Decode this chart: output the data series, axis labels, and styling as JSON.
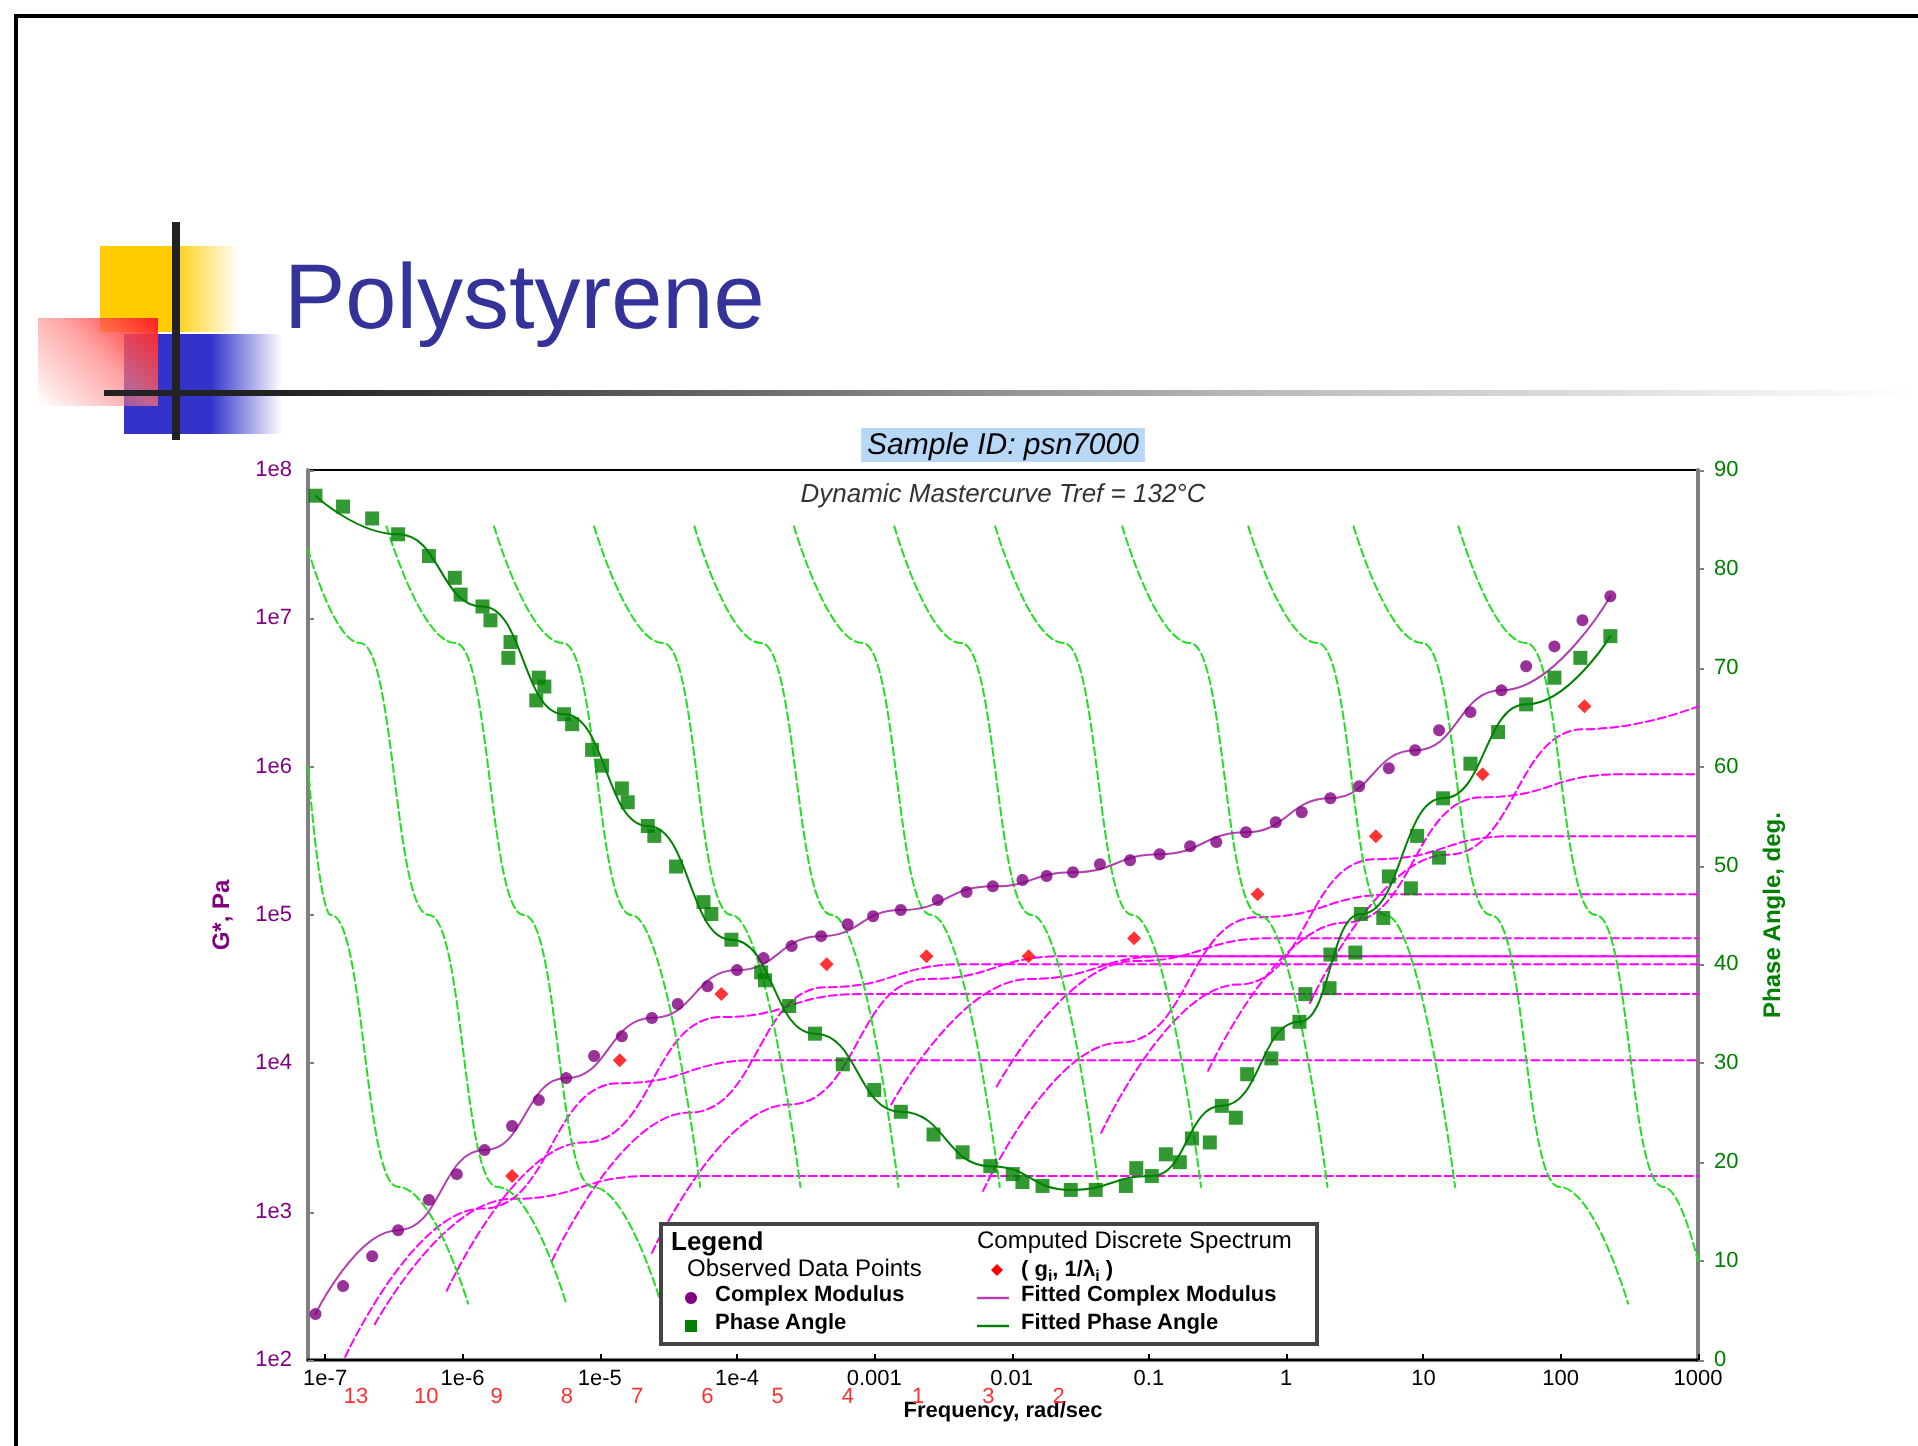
{
  "chart_data": {
    "type": "scatter",
    "title": "Polystyrene",
    "subtitle": "Sample ID: psn7000",
    "xlabel": "Frequency, rad/sec",
    "ylabel": "G*, Pa",
    "y2label": "Phase Angle, deg.",
    "legend_title": "Legend",
    "legend": "bottom",
    "log": "xy",
    "annotations": [
      "Dynamic Mastercurve Tref = 132°C",
      "Observed Data Points",
      "Computed Discrete Spectrum",
      "13",
      "10",
      "9",
      "8",
      "7",
      "6",
      "5",
      "4",
      "1",
      "3",
      "2"
    ],
    "xlim": [
      7.5e-08,
      1000
    ],
    "xticks": [
      {
        "value": 1e-07,
        "label": "1e-7"
      },
      {
        "value": 1e-06,
        "label": "1e-6"
      },
      {
        "value": 1e-05,
        "label": "1e-5"
      },
      {
        "value": 0.0001,
        "label": "1e-4"
      },
      0.001,
      0.01,
      0.1,
      1,
      10,
      100,
      1000
    ],
    "ylim": [
      100,
      100000000
    ],
    "yticks": [
      {
        "value": 100,
        "label": "1e2"
      },
      {
        "value": 1000,
        "label": "1e3"
      },
      {
        "value": 10000,
        "label": "1e4"
      },
      {
        "value": 100000,
        "label": "1e5"
      },
      {
        "value": 1000000,
        "label": "1e6"
      },
      {
        "value": 10000000,
        "label": "1e7"
      },
      {
        "value": 100000000,
        "label": "1e8"
      }
    ],
    "y2lim": [
      0,
      90
    ],
    "y2ticks": [
      0,
      10,
      20,
      30,
      40,
      50,
      60,
      70,
      80,
      90
    ],
    "series": [
      {
        "name": "Complex Modulus",
        "marker": "circle",
        "color": "#800080",
        "x": [
          8.5e-08,
          1.35e-07,
          2.2e-07,
          3.4e-07,
          5.7e-07,
          9.1e-07,
          1.45e-06,
          2.3e-06,
          3.6e-06,
          5.7e-06,
          9.1e-06,
          1.45e-05,
          2.4e-05,
          3.7e-05,
          6.1e-05,
          0.0001,
          0.000156,
          0.00025,
          0.00041,
          0.00064,
          0.00098,
          0.00156,
          0.0029,
          0.0047,
          0.0073,
          0.012,
          0.018,
          0.028,
          0.044,
          0.073,
          0.12,
          0.2,
          0.31,
          0.51,
          0.84,
          1.3,
          2.1,
          3.4,
          5.6,
          8.7,
          13,
          22,
          37,
          56,
          90,
          144,
          230
        ],
        "values": [
          204,
          315,
          500,
          750,
          1200,
          1790,
          2600,
          3780,
          5650,
          7950,
          11200,
          15200,
          20200,
          25100,
          33100,
          42500,
          51200,
          61700,
          72000,
          86700,
          98000,
          108000,
          126000,
          143000,
          156000,
          172000,
          183000,
          194000,
          220000,
          234000,
          257000,
          291000,
          310000,
          361000,
          422000,
          493000,
          612000,
          738000,
          975000,
          1290000,
          1760000,
          2330000,
          3270000,
          4750000,
          6470000,
          9700000,
          14100000
        ]
      },
      {
        "name": "Phase Angle",
        "marker": "square",
        "color": "#008000",
        "axis": "y2",
        "x": [
          8.5e-08,
          1.35e-07,
          2.2e-07,
          3.4e-07,
          5.7e-07,
          8.8e-07,
          9.7e-07,
          1.4e-06,
          1.6e-06,
          2.24e-06,
          2.16e-06,
          3.6e-06,
          3.95e-06,
          3.45e-06,
          5.5e-06,
          6.3e-06,
          8.8e-06,
          1.04e-05,
          1.45e-05,
          1.6e-05,
          2.24e-05,
          2.5e-05,
          3.6e-05,
          5.7e-05,
          6.5e-05,
          9.1e-05,
          0.00015,
          0.00016,
          0.00024,
          0.00037,
          0.00059,
          0.001,
          0.00156,
          0.0027,
          0.0044,
          0.007,
          0.0102,
          0.012,
          0.0168,
          0.027,
          0.041,
          0.068,
          0.081,
          0.105,
          0.133,
          0.168,
          0.206,
          0.278,
          0.34,
          0.43,
          0.52,
          0.78,
          0.87,
          1.25,
          1.38,
          2.07,
          2.1,
          3.19,
          3.5,
          5.1,
          5.6,
          8.1,
          9.0,
          13,
          13.9,
          22,
          35,
          56,
          90,
          139,
          230
        ],
        "values": [
          87.4,
          86.3,
          85.1,
          83.5,
          81.3,
          79.1,
          77.4,
          76.2,
          74.8,
          72.6,
          71.0,
          69.0,
          68.1,
          66.7,
          65.3,
          64.3,
          61.7,
          60.1,
          57.8,
          56.4,
          54.0,
          53.0,
          49.9,
          46.3,
          45.1,
          42.5,
          39.2,
          38.4,
          35.8,
          33.0,
          29.9,
          27.3,
          25.1,
          22.8,
          21.0,
          19.6,
          18.8,
          18.0,
          17.6,
          17.2,
          17.2,
          17.6,
          19.4,
          18.6,
          20.8,
          20.0,
          22.4,
          22.0,
          25.7,
          24.5,
          28.9,
          30.5,
          33.0,
          34.2,
          37.0,
          37.6,
          41.0,
          41.2,
          45.1,
          44.7,
          48.9,
          47.7,
          53.0,
          50.8,
          56.8,
          60.3,
          63.5,
          66.3,
          69.0,
          71.0,
          73.2
        ]
      },
      {
        "name": "( g$_{i}$, 1/λ$_{i}$ )",
        "marker": "diamond",
        "color": "#ff0000",
        "x": [
          2.3e-06,
          1.4e-05,
          7.7e-05,
          0.00045,
          0.0024,
          0.0133,
          0.078,
          0.62,
          4.5,
          27,
          149
        ],
        "values": [
          1740,
          10500,
          29300,
          46600,
          52800,
          52800,
          69800,
          138000,
          340000,
          889000,
          2550000
        ]
      },
      {
        "name": "Fitted Complex Modulus",
        "type": "line",
        "color": "#b040b0",
        "x": [
          8.5e-08,
          3.4e-07,
          1.45e-06,
          5.7e-06,
          2.4e-05,
          0.0001,
          0.00041,
          0.00156,
          0.0073,
          0.028,
          0.12,
          0.51,
          2.1,
          8.7,
          37,
          230
        ],
        "values": [
          204,
          750,
          2600,
          7950,
          20200,
          42500,
          72000,
          108000,
          156000,
          194000,
          257000,
          361000,
          612000,
          1290000,
          3270000,
          14100000
        ]
      },
      {
        "name": "Fitted Phase Angle",
        "type": "line",
        "color": "#008000",
        "axis": "y2",
        "x": [
          8.5e-08,
          3.4e-07,
          1.4e-06,
          5.5e-06,
          2.24e-05,
          9.1e-05,
          0.00037,
          0.00156,
          0.007,
          0.027,
          0.105,
          0.34,
          1.25,
          3.5,
          13.9,
          56,
          230
        ],
        "values": [
          87.4,
          83.5,
          76.2,
          65.3,
          54.0,
          42.5,
          33.0,
          25.1,
          19.6,
          17.2,
          18.6,
          25.7,
          34.2,
          45.1,
          56.8,
          66.3,
          73.2
        ]
      },
      {
        "type": "line",
        "line_style": "dashed",
        "color": "#ff00ff",
        "x": [
          2.3e-07,
          2.3e-06,
          2.3e-05,
          1000
        ],
        "values": [
          174,
          1220,
          1740,
          1740
        ]
      },
      {
        "type": "line",
        "line_style": "dashed",
        "color": "#ff00ff",
        "x": [
          1.4e-07,
          1.4e-06,
          1.4e-05,
          0.00014,
          1000
        ],
        "values": [
          105,
          1050,
          7350,
          10500,
          10500
        ]
      },
      {
        "type": "line",
        "line_style": "dashed",
        "color": "#ff00ff",
        "x": [
          7.7e-07,
          7.7e-06,
          7.7e-05,
          0.00077,
          1000
        ],
        "values": [
          293,
          2930,
          20500,
          29300,
          29300
        ]
      },
      {
        "type": "line",
        "line_style": "dashed",
        "color": "#ff00ff",
        "x": [
          4.5e-06,
          4.5e-05,
          0.00045,
          0.0045,
          1000
        ],
        "values": [
          466,
          4660,
          32600,
          46600,
          46600
        ]
      },
      {
        "type": "line",
        "line_style": "dashed",
        "color": "#ff00ff",
        "x": [
          2.4e-05,
          0.00024,
          0.0024,
          0.024,
          1000
        ],
        "values": [
          528,
          5280,
          37000,
          52800,
          52800
        ]
      },
      {
        "type": "line",
        "line_style": "dashed",
        "color": "#ff00ff",
        "x": [
          0.00133,
          0.0133,
          0.133,
          1000
        ],
        "values": [
          5280,
          37000,
          52800,
          52800
        ]
      },
      {
        "type": "line",
        "line_style": "dashed",
        "color": "#ff00ff",
        "x": [
          0.0078,
          0.078,
          0.78,
          1000
        ],
        "values": [
          6980,
          48900,
          69800,
          69800
        ]
      },
      {
        "type": "line",
        "line_style": "dashed",
        "color": "#ff00ff",
        "x": [
          0.0062,
          0.062,
          0.62,
          6.2,
          1000
        ],
        "values": [
          1380,
          13800,
          96600,
          138000,
          138000
        ]
      },
      {
        "type": "line",
        "line_style": "dashed",
        "color": "#ff00ff",
        "x": [
          0.045,
          0.45,
          4.5,
          45,
          1000
        ],
        "values": [
          3400,
          34000,
          238000,
          340000,
          340000
        ]
      },
      {
        "type": "line",
        "line_style": "dashed",
        "color": "#ff00ff",
        "x": [
          0.27,
          2.7,
          27,
          270,
          1000
        ],
        "values": [
          8890,
          88900,
          622000,
          889000,
          889000
        ]
      },
      {
        "type": "line",
        "line_style": "dashed",
        "color": "#ff00ff",
        "x": [
          1.49,
          14.9,
          149,
          1000
        ],
        "values": [
          25500,
          255000,
          1790000,
          2550000
        ]
      },
      {
        "type": "line",
        "line_style": "dashed",
        "color": "#22dd22",
        "axis": "y2",
        "x": [
          7.5e-08,
          1.1e-07,
          3.4e-07,
          1.1e-06
        ],
        "values": [
          60,
          45,
          17.5,
          5.7
        ]
      },
      {
        "type": "line",
        "line_style": "dashed",
        "color": "#22dd22",
        "axis": "y2",
        "x": [
          7.5e-08,
          1.8e-07,
          5.7e-07,
          1.8e-06,
          5.7e-06
        ],
        "values": [
          82,
          72.5,
          45,
          17.5,
          5.7
        ]
      },
      {
        "type": "line",
        "line_style": "dashed",
        "color": "#22dd22",
        "axis": "y2",
        "x": [
          2.8e-07,
          8.9e-07,
          2.8e-06,
          8.9e-06,
          2.8e-05
        ],
        "values": [
          84.3,
          72.5,
          45,
          17.5,
          5.7
        ]
      },
      {
        "type": "line",
        "line_style": "dashed",
        "color": "#22dd22",
        "axis": "y2",
        "x": [
          1.7e-06,
          5.4e-06,
          1.7e-05,
          5.4e-05
        ],
        "values": [
          84.3,
          72.5,
          45,
          17.5
        ]
      },
      {
        "type": "line",
        "line_style": "dashed",
        "color": "#22dd22",
        "axis": "y2",
        "x": [
          9.1e-06,
          2.9e-05,
          9.1e-05,
          0.00029
        ],
        "values": [
          84.3,
          72.5,
          45,
          17.5
        ]
      },
      {
        "type": "line",
        "line_style": "dashed",
        "color": "#22dd22",
        "axis": "y2",
        "x": [
          4.9e-05,
          0.00015,
          0.00049,
          0.0015
        ],
        "values": [
          84.3,
          72.5,
          45,
          17.5
        ]
      },
      {
        "type": "line",
        "line_style": "dashed",
        "color": "#22dd22",
        "axis": "y2",
        "x": [
          0.00026,
          0.00082,
          0.0026,
          0.0082
        ],
        "values": [
          84.3,
          72.5,
          45,
          17.5
        ]
      },
      {
        "type": "line",
        "line_style": "dashed",
        "color": "#22dd22",
        "axis": "y2",
        "x": [
          0.0014,
          0.0043,
          0.014,
          0.043
        ],
        "values": [
          84.3,
          72.5,
          45,
          17.5
        ]
      },
      {
        "type": "line",
        "line_style": "dashed",
        "color": "#22dd22",
        "axis": "y2",
        "x": [
          0.0076,
          0.024,
          0.076,
          0.24
        ],
        "values": [
          84.3,
          72.5,
          45,
          17.5
        ]
      },
      {
        "type": "line",
        "line_style": "dashed",
        "color": "#22dd22",
        "axis": "y2",
        "x": [
          0.064,
          0.2,
          0.64,
          2.0
        ],
        "values": [
          84.3,
          72.5,
          45,
          17.5
        ]
      },
      {
        "type": "line",
        "line_style": "dashed",
        "color": "#22dd22",
        "axis": "y2",
        "x": [
          0.53,
          1.7,
          5.3,
          17
        ],
        "values": [
          84.3,
          72.5,
          45,
          17.5
        ]
      },
      {
        "type": "line",
        "line_style": "dashed",
        "color": "#22dd22",
        "axis": "y2",
        "x": [
          3.1,
          9.8,
          31,
          98,
          310
        ],
        "values": [
          84.3,
          72.5,
          45,
          17.5,
          5.7
        ]
      },
      {
        "type": "line",
        "line_style": "dashed",
        "color": "#22dd22",
        "axis": "y2",
        "x": [
          18,
          56,
          180,
          560,
          1000
        ],
        "values": [
          84.3,
          72.5,
          45,
          17.5,
          10
        ]
      }
    ]
  }
}
